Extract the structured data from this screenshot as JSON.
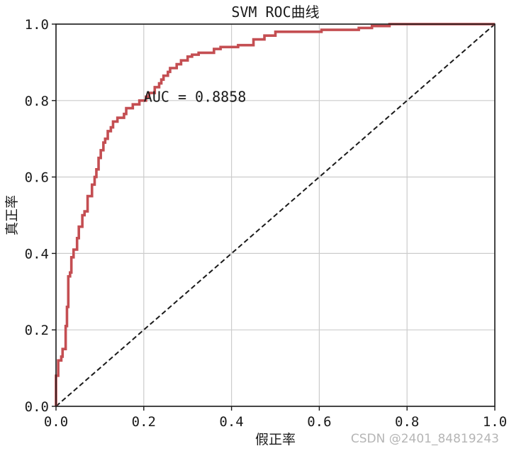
{
  "chart_data": {
    "type": "line",
    "title": "SVM ROC曲线",
    "xlabel": "假正率",
    "ylabel": "真正率",
    "xlim": [
      0.0,
      1.0
    ],
    "ylim": [
      0.0,
      1.0
    ],
    "x_ticks": [
      "0.0",
      "0.2",
      "0.4",
      "0.6",
      "0.8",
      "1.0"
    ],
    "y_ticks": [
      "0.0",
      "0.2",
      "0.4",
      "0.6",
      "0.8",
      "1.0"
    ],
    "grid": true,
    "annotation": "AUC = 0.8858",
    "annotation_position": [
      0.2,
      0.81
    ],
    "series": [
      {
        "color": "#c44e52",
        "style": "step",
        "values": [
          [
            0.0,
            0.0
          ],
          [
            0.0,
            0.08
          ],
          [
            0.005,
            0.08
          ],
          [
            0.005,
            0.12
          ],
          [
            0.012,
            0.12
          ],
          [
            0.012,
            0.13
          ],
          [
            0.015,
            0.13
          ],
          [
            0.015,
            0.15
          ],
          [
            0.022,
            0.15
          ],
          [
            0.022,
            0.21
          ],
          [
            0.025,
            0.21
          ],
          [
            0.025,
            0.26
          ],
          [
            0.028,
            0.26
          ],
          [
            0.028,
            0.34
          ],
          [
            0.032,
            0.34
          ],
          [
            0.032,
            0.35
          ],
          [
            0.035,
            0.35
          ],
          [
            0.035,
            0.39
          ],
          [
            0.04,
            0.39
          ],
          [
            0.04,
            0.41
          ],
          [
            0.048,
            0.41
          ],
          [
            0.048,
            0.44
          ],
          [
            0.052,
            0.44
          ],
          [
            0.052,
            0.47
          ],
          [
            0.06,
            0.47
          ],
          [
            0.06,
            0.5
          ],
          [
            0.065,
            0.5
          ],
          [
            0.065,
            0.51
          ],
          [
            0.072,
            0.51
          ],
          [
            0.072,
            0.55
          ],
          [
            0.082,
            0.55
          ],
          [
            0.082,
            0.58
          ],
          [
            0.088,
            0.58
          ],
          [
            0.088,
            0.6
          ],
          [
            0.092,
            0.6
          ],
          [
            0.092,
            0.62
          ],
          [
            0.097,
            0.62
          ],
          [
            0.097,
            0.65
          ],
          [
            0.102,
            0.65
          ],
          [
            0.102,
            0.67
          ],
          [
            0.108,
            0.67
          ],
          [
            0.108,
            0.69
          ],
          [
            0.112,
            0.69
          ],
          [
            0.112,
            0.7
          ],
          [
            0.118,
            0.7
          ],
          [
            0.118,
            0.72
          ],
          [
            0.125,
            0.72
          ],
          [
            0.125,
            0.73
          ],
          [
            0.13,
            0.73
          ],
          [
            0.13,
            0.745
          ],
          [
            0.14,
            0.745
          ],
          [
            0.14,
            0.755
          ],
          [
            0.155,
            0.755
          ],
          [
            0.155,
            0.765
          ],
          [
            0.16,
            0.765
          ],
          [
            0.16,
            0.78
          ],
          [
            0.175,
            0.78
          ],
          [
            0.175,
            0.79
          ],
          [
            0.19,
            0.79
          ],
          [
            0.19,
            0.8
          ],
          [
            0.205,
            0.8
          ],
          [
            0.205,
            0.81
          ],
          [
            0.212,
            0.81
          ],
          [
            0.212,
            0.82
          ],
          [
            0.225,
            0.82
          ],
          [
            0.225,
            0.835
          ],
          [
            0.235,
            0.835
          ],
          [
            0.235,
            0.845
          ],
          [
            0.24,
            0.845
          ],
          [
            0.24,
            0.855
          ],
          [
            0.245,
            0.855
          ],
          [
            0.245,
            0.865
          ],
          [
            0.255,
            0.865
          ],
          [
            0.255,
            0.875
          ],
          [
            0.26,
            0.875
          ],
          [
            0.26,
            0.885
          ],
          [
            0.275,
            0.885
          ],
          [
            0.275,
            0.895
          ],
          [
            0.285,
            0.895
          ],
          [
            0.285,
            0.905
          ],
          [
            0.3,
            0.905
          ],
          [
            0.3,
            0.915
          ],
          [
            0.31,
            0.915
          ],
          [
            0.31,
            0.92
          ],
          [
            0.325,
            0.92
          ],
          [
            0.325,
            0.925
          ],
          [
            0.36,
            0.925
          ],
          [
            0.36,
            0.935
          ],
          [
            0.375,
            0.935
          ],
          [
            0.375,
            0.94
          ],
          [
            0.415,
            0.94
          ],
          [
            0.415,
            0.945
          ],
          [
            0.45,
            0.945
          ],
          [
            0.45,
            0.96
          ],
          [
            0.475,
            0.96
          ],
          [
            0.475,
            0.97
          ],
          [
            0.5,
            0.97
          ],
          [
            0.5,
            0.98
          ],
          [
            0.605,
            0.98
          ],
          [
            0.605,
            0.985
          ],
          [
            0.69,
            0.985
          ],
          [
            0.69,
            0.99
          ],
          [
            0.72,
            0.99
          ],
          [
            0.72,
            0.995
          ],
          [
            0.76,
            0.995
          ],
          [
            0.76,
            1.0
          ],
          [
            1.0,
            1.0
          ]
        ]
      },
      {
        "color": "#1a1a1a",
        "style": "dashed",
        "values": [
          [
            0.0,
            0.0
          ],
          [
            1.0,
            1.0
          ]
        ]
      }
    ]
  },
  "watermark": "CSDN @2401_84819243"
}
